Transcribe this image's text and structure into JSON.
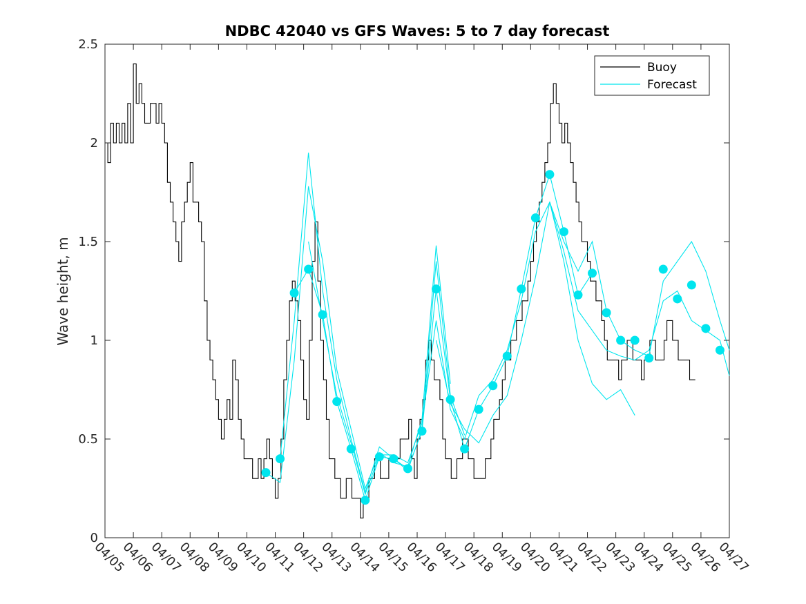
{
  "chart_data": {
    "type": "line",
    "title": "NDBC 42040 vs GFS Waves: 5 to 7 day forecast",
    "xlabel": "",
    "ylabel": "Wave height, m",
    "xlim": [
      "04/05",
      "04/27"
    ],
    "ylim": [
      0,
      2.5
    ],
    "x_ticks": [
      "04/05",
      "04/06",
      "04/07",
      "04/08",
      "04/09",
      "04/10",
      "04/11",
      "04/12",
      "04/13",
      "04/14",
      "04/15",
      "04/16",
      "04/17",
      "04/18",
      "04/19",
      "04/20",
      "04/21",
      "04/22",
      "04/23",
      "04/24",
      "04/25",
      "04/26",
      "04/27"
    ],
    "y_ticks": [
      "0",
      "0.5",
      "1",
      "1.5",
      "2",
      "2.5"
    ],
    "grid": false,
    "legend_position": "top-right",
    "colors": {
      "buoy": "#000000",
      "forecast": "#00e5ee",
      "axis": "#262626"
    },
    "series": [
      {
        "name": "Buoy",
        "style": "step-line",
        "x_day_of_april": [
          5.0,
          5.1,
          5.2,
          5.3,
          5.4,
          5.5,
          5.6,
          5.7,
          5.8,
          5.9,
          6.0,
          6.1,
          6.2,
          6.3,
          6.4,
          6.5,
          6.6,
          6.7,
          6.8,
          6.9,
          7.0,
          7.1,
          7.2,
          7.3,
          7.4,
          7.5,
          7.6,
          7.7,
          7.8,
          7.9,
          8.0,
          8.1,
          8.2,
          8.3,
          8.4,
          8.5,
          8.6,
          8.7,
          8.8,
          8.9,
          9.0,
          9.1,
          9.2,
          9.3,
          9.4,
          9.5,
          9.6,
          9.7,
          9.8,
          9.9,
          10.0,
          10.1,
          10.2,
          10.3,
          10.4,
          10.5,
          10.6,
          10.7,
          10.8,
          10.9,
          11.0,
          11.1,
          11.2,
          11.3,
          11.4,
          11.5,
          11.6,
          11.7,
          11.8,
          11.9,
          12.0,
          12.1,
          12.2,
          12.3,
          12.4,
          12.5,
          12.6,
          12.7,
          12.8,
          12.9,
          13.0,
          13.1,
          13.2,
          13.3,
          13.4,
          13.5,
          13.6,
          13.7,
          13.8,
          13.9,
          14.0,
          14.1,
          14.2,
          14.3,
          14.4,
          14.5,
          14.6,
          14.7,
          14.8,
          14.9,
          15.0,
          15.1,
          15.2,
          15.3,
          15.4,
          15.5,
          15.6,
          15.7,
          15.8,
          15.9,
          16.0,
          16.1,
          16.2,
          16.3,
          16.4,
          16.5,
          16.6,
          16.7,
          16.8,
          16.9,
          17.0,
          17.1,
          17.2,
          17.3,
          17.4,
          17.5,
          17.6,
          17.7,
          17.8,
          17.9,
          18.0,
          18.1,
          18.2,
          18.3,
          18.4,
          18.5,
          18.6,
          18.7,
          18.8,
          18.9,
          19.0,
          19.1,
          19.2,
          19.3,
          19.4,
          19.5,
          19.6,
          19.7,
          19.8,
          19.9,
          20.0,
          20.1,
          20.2,
          20.3,
          20.4,
          20.5,
          20.6,
          20.7,
          20.8,
          20.9,
          21.0,
          21.1,
          21.2,
          21.3,
          21.4,
          21.5,
          21.6,
          21.7,
          21.8,
          21.9,
          22.0,
          22.1,
          22.2,
          22.3,
          22.4,
          22.5,
          22.6,
          22.7,
          22.8,
          22.9,
          23.0,
          23.1,
          23.2,
          23.3,
          23.4,
          23.5,
          23.6,
          23.7,
          23.8,
          23.9,
          24.0,
          24.1,
          24.2,
          24.3,
          24.4,
          24.5,
          24.6,
          24.7,
          24.8,
          24.9,
          25.0,
          25.1,
          25.2,
          25.3,
          25.4,
          25.5,
          25.6,
          25.7,
          25.8,
          25.9,
          26.0,
          26.1,
          26.2
        ],
        "y": [
          2.0,
          1.9,
          2.1,
          2.0,
          2.1,
          2.0,
          2.1,
          2.0,
          2.2,
          2.0,
          2.4,
          2.2,
          2.3,
          2.2,
          2.1,
          2.1,
          2.2,
          2.2,
          2.1,
          2.2,
          2.1,
          2.0,
          1.8,
          1.7,
          1.6,
          1.5,
          1.4,
          1.6,
          1.7,
          1.8,
          1.9,
          1.7,
          1.7,
          1.6,
          1.5,
          1.2,
          1.0,
          0.9,
          0.8,
          0.7,
          0.6,
          0.5,
          0.6,
          0.7,
          0.6,
          0.9,
          0.8,
          0.6,
          0.5,
          0.4,
          0.4,
          0.4,
          0.3,
          0.3,
          0.4,
          0.3,
          0.4,
          0.5,
          0.4,
          0.3,
          0.2,
          0.3,
          0.5,
          0.8,
          1.0,
          1.2,
          1.3,
          1.2,
          1.1,
          0.9,
          0.7,
          0.6,
          1.0,
          1.4,
          1.6,
          1.3,
          1.0,
          0.8,
          0.6,
          0.4,
          0.4,
          0.3,
          0.3,
          0.2,
          0.2,
          0.3,
          0.3,
          0.2,
          0.2,
          0.2,
          0.1,
          0.2,
          0.2,
          0.3,
          0.3,
          0.4,
          0.4,
          0.3,
          0.3,
          0.3,
          0.4,
          0.4,
          0.4,
          0.4,
          0.5,
          0.5,
          0.5,
          0.6,
          0.4,
          0.3,
          0.5,
          0.6,
          0.7,
          0.9,
          1.0,
          0.9,
          0.8,
          0.8,
          0.7,
          0.5,
          0.4,
          0.4,
          0.3,
          0.3,
          0.4,
          0.4,
          0.5,
          0.5,
          0.4,
          0.4,
          0.3,
          0.3,
          0.3,
          0.3,
          0.4,
          0.4,
          0.5,
          0.6,
          0.6,
          0.7,
          0.8,
          0.9,
          0.9,
          1.0,
          1.0,
          1.1,
          1.1,
          1.2,
          1.2,
          1.3,
          1.4,
          1.5,
          1.6,
          1.7,
          1.8,
          1.9,
          2.0,
          2.2,
          2.3,
          2.2,
          2.1,
          2.0,
          2.1,
          2.0,
          1.9,
          1.8,
          1.7,
          1.6,
          1.5,
          1.5,
          1.4,
          1.3,
          1.3,
          1.2,
          1.2,
          1.1,
          1.0,
          0.9,
          0.9,
          0.9,
          0.9,
          0.8,
          0.9,
          0.9,
          1.0,
          1.0,
          0.9,
          0.9,
          0.9,
          0.8,
          0.9,
          0.9,
          1.0,
          1.0,
          0.9,
          0.9,
          0.9,
          1.0,
          1.1,
          1.1,
          1.0,
          1.0,
          0.9,
          0.9,
          0.9,
          0.9,
          0.8,
          0.8
        ]
      },
      {
        "name": "Forecast",
        "style": "lines-with-markers",
        "markers_x_day_of_april": [
          10.67,
          11.17,
          11.67,
          12.17,
          12.67,
          13.17,
          13.67,
          14.17,
          14.67,
          15.17,
          15.67,
          16.17,
          16.67,
          17.17,
          17.67,
          18.17,
          18.67,
          19.17,
          19.67,
          20.17,
          20.67,
          21.17,
          21.67,
          22.17,
          22.67,
          23.17,
          23.67,
          24.17,
          24.67,
          25.17,
          25.67,
          26.17,
          26.67
        ],
        "markers_y": [
          0.33,
          0.4,
          1.24,
          1.36,
          1.13,
          0.69,
          0.45,
          0.19,
          0.41,
          0.4,
          0.35,
          0.54,
          1.26,
          0.7,
          0.45,
          0.65,
          0.77,
          0.92,
          1.26,
          1.62,
          1.84,
          1.55,
          1.23,
          1.34,
          1.14,
          1.0,
          1.0,
          0.91,
          1.36,
          1.21,
          1.28,
          1.06,
          0.95
        ],
        "runs": [
          {
            "x_day_of_april": [
              10.67,
              11.17,
              11.67,
              12.17,
              12.67,
              13.17,
              13.67,
              14.17,
              14.67,
              15.17,
              15.67,
              16.17,
              16.67,
              17.17
            ],
            "y": [
              0.33,
              0.28,
              0.9,
              1.78,
              1.4,
              0.85,
              0.55,
              0.25,
              0.43,
              0.38,
              0.36,
              0.6,
              1.48,
              0.78
            ]
          },
          {
            "x_day_of_april": [
              11.17,
              11.67,
              12.17,
              12.67,
              13.17,
              13.67,
              14.17,
              14.67,
              15.17,
              15.67,
              16.17,
              16.67,
              17.17,
              17.67
            ],
            "y": [
              0.4,
              1.1,
              1.95,
              1.25,
              0.8,
              0.5,
              0.23,
              0.46,
              0.4,
              0.34,
              0.55,
              1.4,
              0.72,
              0.52
            ]
          },
          {
            "x_day_of_april": [
              11.67,
              12.17,
              12.67,
              13.17,
              13.67,
              14.17,
              14.67,
              15.17,
              15.67,
              16.17,
              16.67,
              17.17,
              17.67,
              18.17,
              18.67,
              19.17,
              19.67,
              20.17,
              20.67,
              21.17,
              21.67,
              22.17
            ],
            "y": [
              1.24,
              1.36,
              1.13,
              0.69,
              0.45,
              0.19,
              0.41,
              0.4,
              0.35,
              0.54,
              1.26,
              0.7,
              0.45,
              0.65,
              0.77,
              0.92,
              1.26,
              1.62,
              1.84,
              1.55,
              1.23,
              1.34
            ]
          },
          {
            "x_day_of_april": [
              12.17,
              12.67,
              13.17,
              13.67,
              14.17,
              14.67,
              15.17,
              15.67,
              16.17,
              16.67,
              17.17,
              17.67,
              18.17,
              18.67,
              19.17,
              19.67,
              20.17,
              20.67,
              21.17,
              21.67,
              22.17,
              22.67,
              23.17,
              23.67,
              24.17,
              24.67,
              25.17,
              25.67,
              26.17,
              26.67,
              27.0
            ],
            "y": [
              1.5,
              1.1,
              0.72,
              0.48,
              0.22,
              0.42,
              0.42,
              0.38,
              0.58,
              1.1,
              0.65,
              0.5,
              0.72,
              0.8,
              0.95,
              1.2,
              1.55,
              1.7,
              1.45,
              1.15,
              1.05,
              0.95,
              0.92,
              0.9,
              0.95,
              1.2,
              1.25,
              1.1,
              1.05,
              1.0,
              0.82
            ]
          },
          {
            "x_day_of_april": [
              16.67,
              17.17,
              17.67,
              18.17,
              18.67,
              19.17,
              19.67,
              20.17,
              20.67,
              21.17,
              21.67,
              22.17,
              22.67,
              23.17,
              23.67
            ],
            "y": [
              1.0,
              0.68,
              0.55,
              0.48,
              0.62,
              0.72,
              1.0,
              1.32,
              1.7,
              1.4,
              1.0,
              0.78,
              0.7,
              0.75,
              0.62
            ]
          },
          {
            "x_day_of_april": [
              20.67,
              21.17,
              21.67,
              22.17,
              22.67,
              23.17,
              23.67,
              24.17,
              24.67,
              25.17,
              25.67,
              26.17,
              26.67,
              27.0
            ],
            "y": [
              1.7,
              1.5,
              1.35,
              1.5,
              1.15,
              1.0,
              0.95,
              0.92,
              1.3,
              1.4,
              1.5,
              1.35,
              1.1,
              0.95
            ]
          }
        ]
      }
    ]
  }
}
